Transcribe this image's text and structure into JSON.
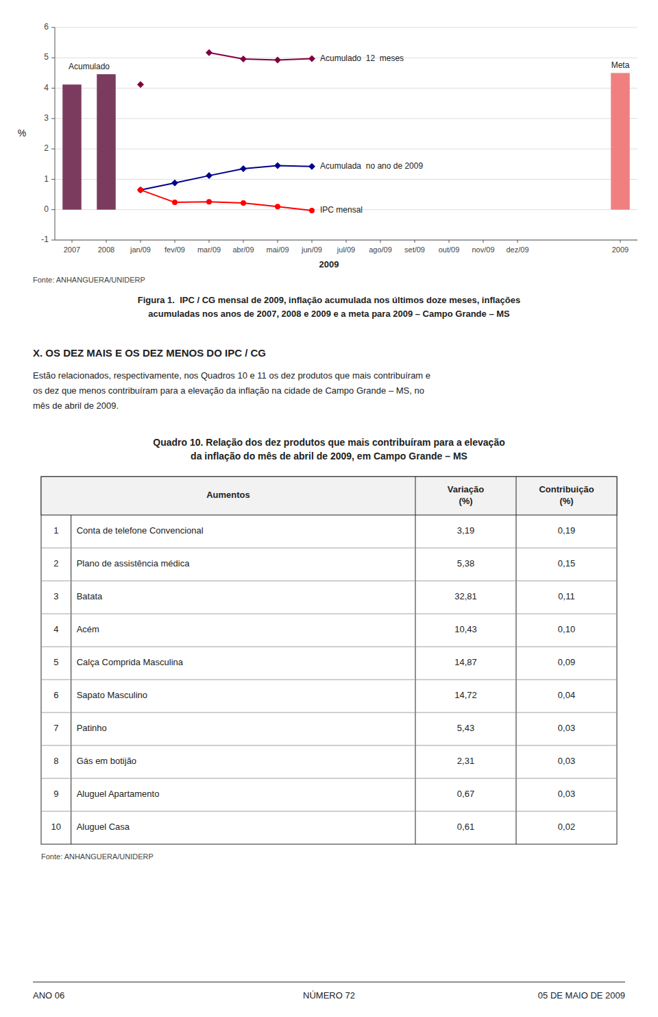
{
  "chart_data": {
    "type": "bar",
    "ylabel": "%",
    "categories": [
      "2007",
      "2008",
      "jan/09",
      "fev/09",
      "mar/09",
      "abr/09",
      "mai/09",
      "jun/09",
      "jul/09",
      "ago/09",
      "set/09",
      "out/09",
      "nov/09",
      "dez/09",
      null,
      null,
      "2009"
    ],
    "series": [
      {
        "name": "Acumulado",
        "type": "bar",
        "color": "#7B3B5E",
        "values": [
          4.12,
          4.46,
          null,
          null,
          null,
          null,
          null,
          null,
          null,
          null,
          null,
          null,
          null,
          null,
          null,
          null,
          null
        ]
      },
      {
        "name": "Meta",
        "type": "bar",
        "color": "#F08080",
        "values": [
          null,
          null,
          null,
          null,
          null,
          null,
          null,
          null,
          null,
          null,
          null,
          null,
          null,
          null,
          null,
          null,
          4.5
        ]
      },
      {
        "name": "Acumulado  12  meses",
        "type": "line",
        "color": "#800040",
        "marker": "diamond",
        "values": [
          null,
          null,
          4.12,
          null,
          5.17,
          4.96,
          4.93,
          4.97,
          null,
          null,
          null,
          null,
          null,
          null,
          null,
          null,
          null
        ]
      },
      {
        "name": "Acumulada  no ano de 2009",
        "type": "line",
        "color": "#00008B",
        "marker": "diamond",
        "values": [
          null,
          null,
          0.65,
          0.88,
          1.12,
          1.35,
          1.45,
          1.42,
          null,
          null,
          null,
          null,
          null,
          null,
          null,
          null,
          null
        ]
      },
      {
        "name": "IPC mensal",
        "type": "line",
        "color": "#FF0000",
        "marker": "circle",
        "values": [
          null,
          null,
          0.65,
          0.24,
          0.26,
          0.22,
          0.1,
          -0.03,
          null,
          null,
          null,
          null,
          null,
          null,
          null,
          null,
          null
        ]
      }
    ],
    "ylim": [
      -1,
      6
    ],
    "yticks": [
      -1,
      0,
      1,
      2,
      3,
      4,
      5,
      6
    ],
    "grid": true,
    "annotations": [
      "2009"
    ]
  },
  "caption": {
    "source": "Fonte: ANHANGUERA/UNIDERP",
    "title": [
      "Figura 1.  IPC / CG mensal de 2009, inflação acumulada nos últimos doze meses, inflações",
      "acumuladas nos anos de 2007, 2008 e 2009 e a meta para 2009 – Campo Grande – MS"
    ]
  },
  "section": {
    "title": "X. OS DEZ MAIS E OS DEZ MENOS DO IPC / CG",
    "text": [
      "Estão relacionados, respectivamente, nos Quadros 10 e 11 os dez produtos que mais contribuíram e",
      "os dez que menos contribuíram para a elevação da inflação na cidade de Campo Grande – MS, no",
      "mês de abril de 2009."
    ]
  },
  "table": {
    "title": [
      "Quadro 10. Relação dos dez produtos que mais contribuíram para a elevação",
      "da inflação do mês de abril de 2009, em Campo Grande – MS"
    ],
    "columns": [
      "Aumentos",
      "Variação\n(%)",
      "Contribuição\n(%)"
    ],
    "rows": [
      [
        "1",
        "Conta de telefone Convencional",
        "3,19",
        "0,19"
      ],
      [
        "2",
        "Plano de assistência médica",
        "5,38",
        "0,15"
      ],
      [
        "3",
        "Batata",
        "32,81",
        "0,11"
      ],
      [
        "4",
        "Acém",
        "10,43",
        "0,10"
      ],
      [
        "5",
        "Calça Comprida Masculina",
        "14,87",
        "0,09"
      ],
      [
        "6",
        "Sapato Masculino",
        "14,72",
        "0,04"
      ],
      [
        "7",
        "Patinho",
        "5,43",
        "0,03"
      ],
      [
        "8",
        "Gás em botijão",
        "2,31",
        "0,03"
      ],
      [
        "9",
        "Aluguel Apartamento",
        "0,67",
        "0,03"
      ],
      [
        "10",
        "Aluguel Casa",
        "0,61",
        "0,02"
      ]
    ],
    "source": "Fonte: ANHANGUERA/UNIDERP"
  },
  "footer": {
    "left": "ANO 06",
    "center": "NÚMERO 72",
    "right": "05 DE MAIO DE 2009"
  }
}
